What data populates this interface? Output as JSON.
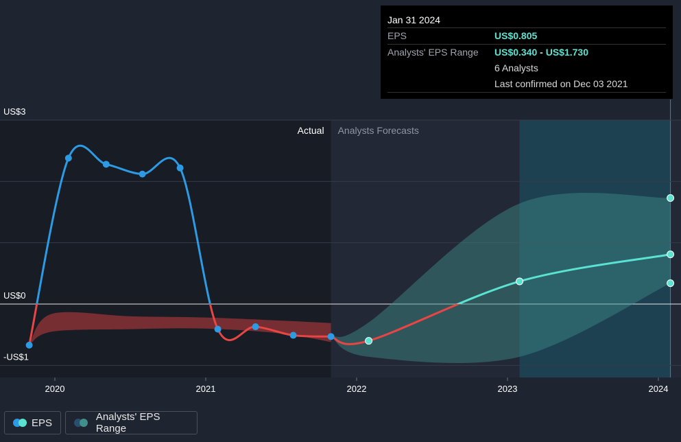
{
  "tooltip": {
    "date": "Jan 31 2024",
    "eps_label": "EPS",
    "eps_value": "US$0.805",
    "range_label": "Analysts' EPS Range",
    "range_low": "US$0.340",
    "range_sep": "-",
    "range_high": "US$1.730",
    "analysts": "6 Analysts",
    "confirmed": "Last confirmed on Dec 03 2021"
  },
  "legend": {
    "eps": "EPS",
    "range": "Analysts' EPS Range"
  },
  "colors": {
    "eps_actual_positive": "#2d9be3",
    "eps_negative": "#e84545",
    "eps_forecast": "#5be3d1",
    "range_area": "#3f8f8a",
    "background": "#1f2431",
    "actual_panel": "#181c24"
  },
  "chart_data": {
    "type": "line",
    "sections": {
      "actual": "Actual",
      "forecast": "Analysts Forecasts"
    },
    "ylim": [
      -1,
      3
    ],
    "y_ticks": [
      {
        "value": 3,
        "label": "US$3"
      },
      {
        "value": 0,
        "label": "US$0"
      },
      {
        "value": -1,
        "label": "-US$1"
      }
    ],
    "x_ticks": [
      {
        "value": 2020,
        "label": "2020"
      },
      {
        "value": 2021,
        "label": "2021"
      },
      {
        "value": 2022,
        "label": "2022"
      },
      {
        "value": 2023,
        "label": "2023"
      },
      {
        "value": 2024,
        "label": "2024"
      }
    ],
    "xlim": [
      2019.78,
      2024.1
    ],
    "forecast_start": 2021.83,
    "highlight_start": 2023.08,
    "series": [
      {
        "name": "EPS",
        "points": [
          [
            2019.83,
            -0.67
          ],
          [
            2020.09,
            2.38
          ],
          [
            2020.34,
            2.28
          ],
          [
            2020.58,
            2.12
          ],
          [
            2020.83,
            2.22
          ],
          [
            2021.08,
            -0.41
          ],
          [
            2021.33,
            -0.37
          ],
          [
            2021.58,
            -0.51
          ],
          [
            2021.83,
            -0.53
          ]
        ]
      },
      {
        "name": "EPS forecast",
        "points": [
          [
            2021.83,
            -0.53
          ],
          [
            2022.08,
            -0.6
          ],
          [
            2023.08,
            0.37
          ],
          [
            2024.08,
            0.81
          ]
        ]
      }
    ],
    "range": {
      "name": "Analysts' EPS Range",
      "high": [
        [
          2021.83,
          -0.53
        ],
        [
          2022.08,
          -0.3
        ],
        [
          2023.08,
          1.64
        ],
        [
          2024.08,
          1.73
        ]
      ],
      "low": [
        [
          2021.83,
          -0.53
        ],
        [
          2022.08,
          -0.86
        ],
        [
          2023.08,
          -0.86
        ],
        [
          2024.08,
          0.34
        ]
      ]
    },
    "past_range": {
      "high": [
        [
          2019.83,
          -0.67
        ],
        [
          2019.98,
          -0.16
        ],
        [
          2020.5,
          -0.2
        ],
        [
          2021.0,
          -0.22
        ],
        [
          2021.5,
          -0.27
        ],
        [
          2021.83,
          -0.31
        ]
      ],
      "low": [
        [
          2019.83,
          -0.67
        ],
        [
          2019.98,
          -0.45
        ],
        [
          2020.5,
          -0.41
        ],
        [
          2021.0,
          -0.4
        ],
        [
          2021.5,
          -0.48
        ],
        [
          2021.83,
          -0.62
        ]
      ]
    }
  }
}
